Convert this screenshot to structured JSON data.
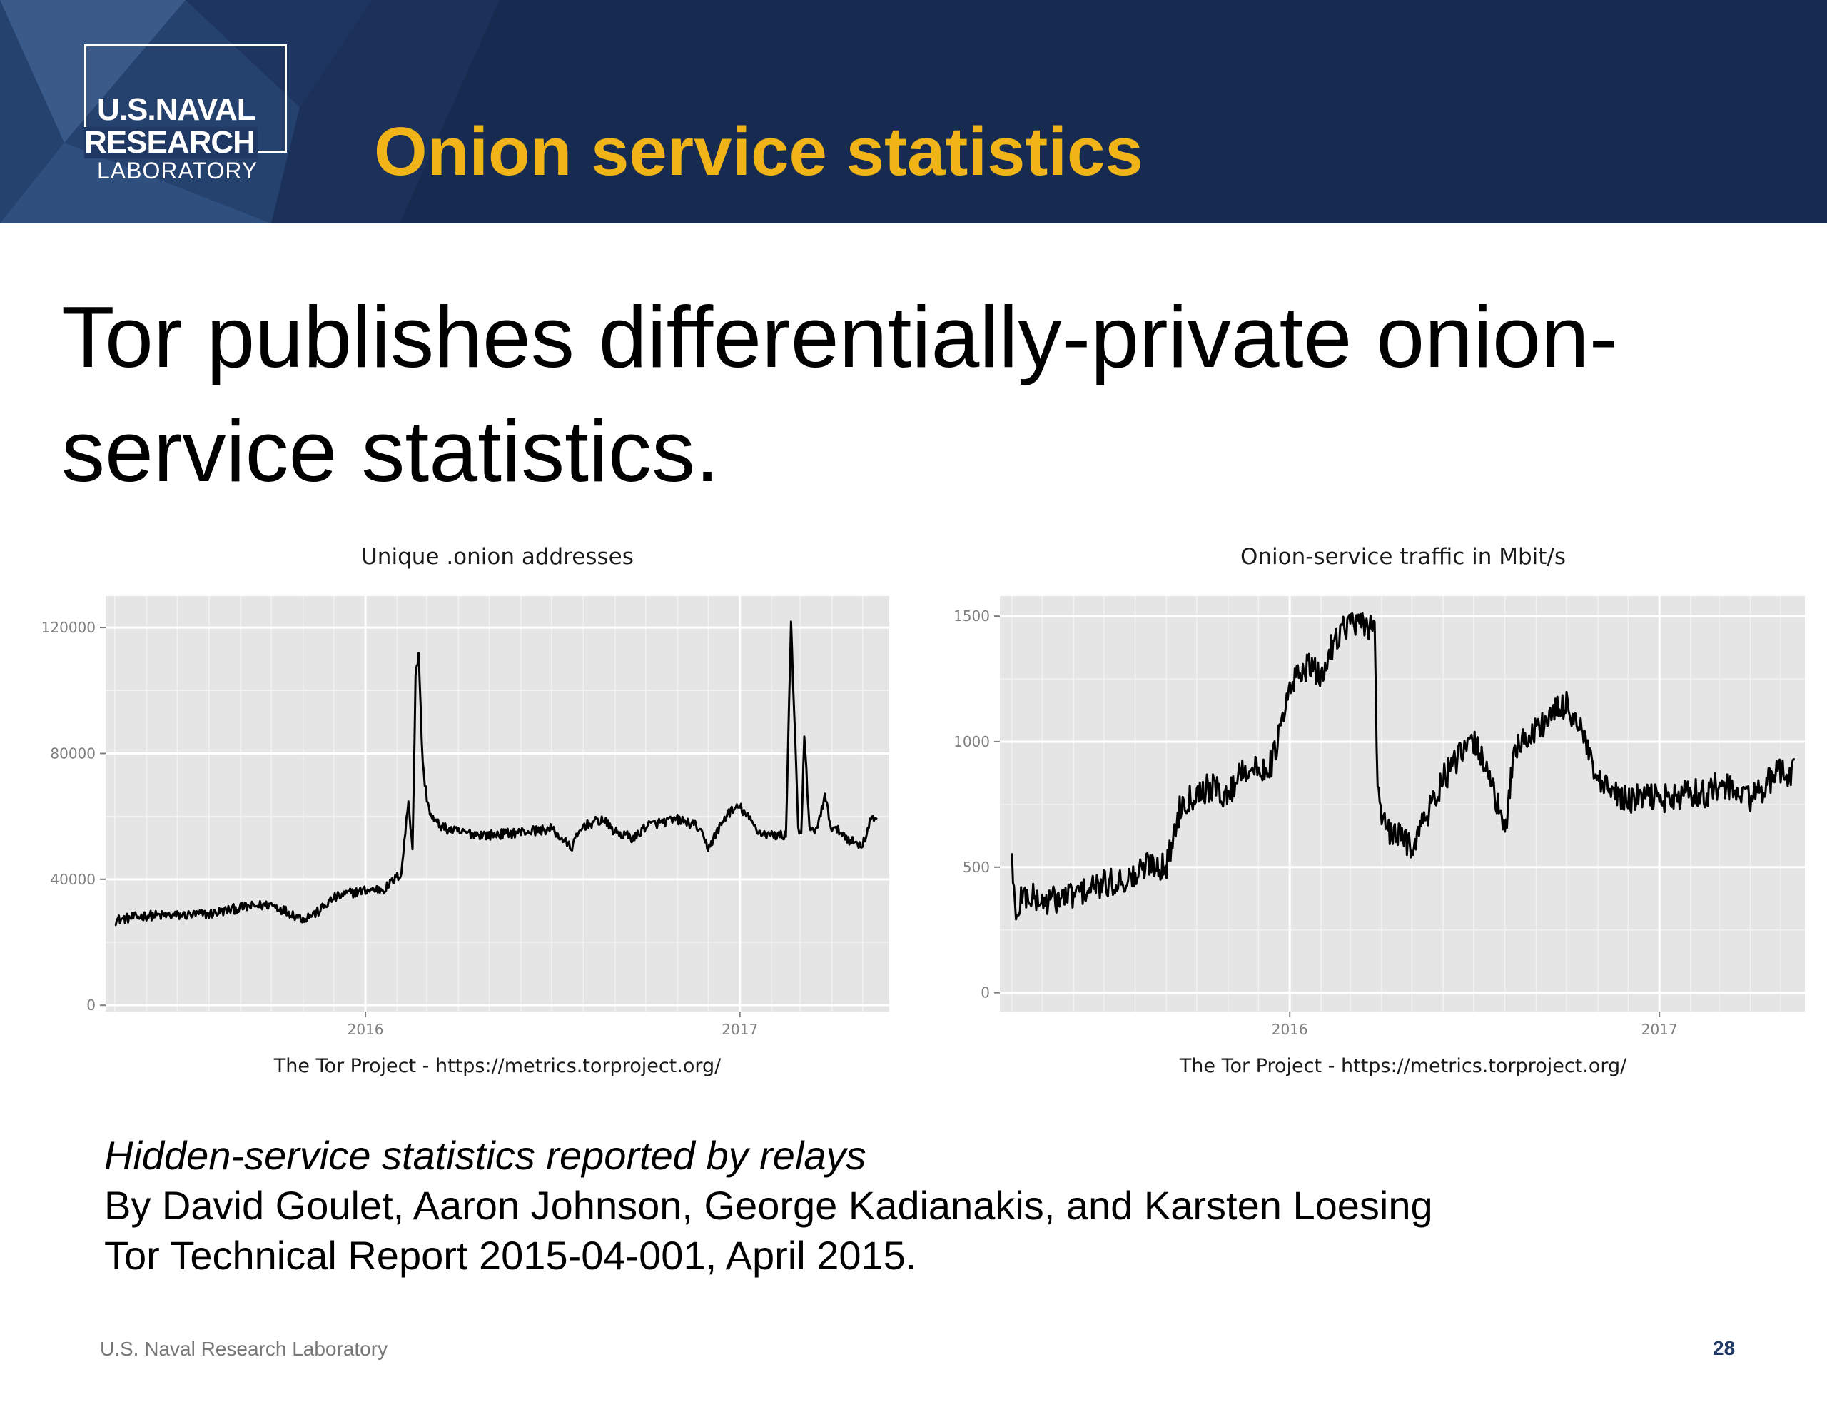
{
  "header": {
    "logo": {
      "line1": "U.S.NAVAL",
      "line2": "RESEARCH",
      "line3": "LABORATORY"
    },
    "title": "Onion service statistics",
    "colors": {
      "background": "#172a4f",
      "title": "#f0b418"
    }
  },
  "headline": "Tor publishes differentially-private onion-service statistics.",
  "chart_data": [
    {
      "type": "line",
      "title": "Unique .onion addresses",
      "source": "The Tor Project - https://metrics.torproject.org/",
      "xlabel": "",
      "ylabel": "",
      "x_ticks": [
        "2016",
        "2017"
      ],
      "y_ticks": [
        0,
        40000,
        80000,
        120000
      ],
      "ylim": [
        -2000,
        130000
      ],
      "xlim": [
        "2015-04-22",
        "2017-05-27"
      ],
      "grid": true,
      "series": [
        {
          "x": [
            "2015-05-01",
            "2015-06-01",
            "2015-07-01",
            "2015-08-01",
            "2015-09-01",
            "2015-10-01",
            "2015-11-01",
            "2015-11-15",
            "2015-12-01",
            "2015-12-15",
            "2016-01-01",
            "2016-01-20",
            "2016-02-05",
            "2016-02-12",
            "2016-02-16",
            "2016-02-19",
            "2016-02-22",
            "2016-02-26",
            "2016-03-01",
            "2016-03-05",
            "2016-03-10",
            "2016-03-20",
            "2016-04-01",
            "2016-05-01",
            "2016-06-01",
            "2016-07-01",
            "2016-07-20",
            "2016-08-01",
            "2016-08-20",
            "2016-09-01",
            "2016-09-20",
            "2016-10-01",
            "2016-10-15",
            "2016-11-01",
            "2016-11-20",
            "2016-12-01",
            "2016-12-20",
            "2017-01-01",
            "2017-01-20",
            "2017-02-01",
            "2017-02-15",
            "2017-02-20",
            "2017-02-27",
            "2017-03-02",
            "2017-03-05",
            "2017-03-10",
            "2017-03-15",
            "2017-03-25",
            "2017-04-01",
            "2017-04-10",
            "2017-04-20",
            "2017-05-01",
            "2017-05-10",
            "2017-05-15"
          ],
          "values": [
            27000,
            28500,
            28500,
            29000,
            31000,
            32000,
            27500,
            29500,
            34000,
            35500,
            36500,
            37000,
            42000,
            65000,
            50000,
            104000,
            112000,
            76000,
            66000,
            60000,
            58000,
            56000,
            55000,
            54000,
            55000,
            56000,
            50000,
            57000,
            59000,
            55000,
            53000,
            57000,
            58000,
            59000,
            57000,
            50000,
            61000,
            63000,
            55000,
            54000,
            54000,
            122000,
            56000,
            54000,
            85000,
            57000,
            54000,
            66000,
            56000,
            55000,
            52000,
            51000,
            60000,
            58000
          ]
        }
      ]
    },
    {
      "type": "line",
      "title": "Onion-service traffic in Mbit/s",
      "source": "The Tor Project - https://metrics.torproject.org/",
      "xlabel": "",
      "ylabel": "",
      "x_ticks": [
        "2016",
        "2017"
      ],
      "y_ticks": [
        0,
        500,
        1000,
        1500
      ],
      "ylim": [
        -75,
        1580
      ],
      "xlim": [
        "2015-03-20",
        "2017-05-25"
      ],
      "grid": true,
      "series": [
        {
          "x": [
            "2015-04-01",
            "2015-04-05",
            "2015-04-10",
            "2015-04-20",
            "2015-05-01",
            "2015-06-01",
            "2015-07-01",
            "2015-08-01",
            "2015-08-15",
            "2015-09-01",
            "2015-09-15",
            "2015-10-01",
            "2015-10-15",
            "2015-11-01",
            "2015-11-15",
            "2015-12-01",
            "2015-12-15",
            "2016-01-01",
            "2016-01-10",
            "2016-01-20",
            "2016-02-01",
            "2016-02-15",
            "2016-03-01",
            "2016-03-15",
            "2016-03-25",
            "2016-03-28",
            "2016-04-05",
            "2016-04-20",
            "2016-05-01",
            "2016-05-15",
            "2016-06-01",
            "2016-06-15",
            "2016-07-01",
            "2016-07-15",
            "2016-08-01",
            "2016-08-10",
            "2016-08-20",
            "2016-09-01",
            "2016-09-15",
            "2016-10-01",
            "2016-10-15",
            "2016-11-01",
            "2016-11-20",
            "2016-12-01",
            "2016-12-15",
            "2017-01-01",
            "2017-01-15",
            "2017-02-01",
            "2017-02-15",
            "2017-03-01",
            "2017-03-15",
            "2017-04-01",
            "2017-04-15",
            "2017-05-01",
            "2017-05-15"
          ],
          "values": [
            550,
            260,
            390,
            380,
            360,
            390,
            430,
            460,
            520,
            500,
            750,
            800,
            820,
            780,
            900,
            880,
            920,
            1200,
            1280,
            1300,
            1250,
            1420,
            1480,
            1450,
            1480,
            800,
            640,
            620,
            590,
            700,
            850,
            930,
            1000,
            900,
            620,
            980,
            1000,
            1050,
            1100,
            1150,
            1050,
            830,
            790,
            760,
            780,
            780,
            770,
            800,
            790,
            830,
            800,
            780,
            820,
            880,
            880
          ]
        }
      ]
    }
  ],
  "citation": {
    "title": "Hidden-service statistics reported by relays",
    "authors": "By David Goulet, Aaron Johnson, George Kadianakis, and Karsten Loesing",
    "report": "Tor Technical Report 2015-04-001, April 2015."
  },
  "footer": {
    "organization": "U.S. Naval Research Laboratory",
    "page": "28"
  }
}
